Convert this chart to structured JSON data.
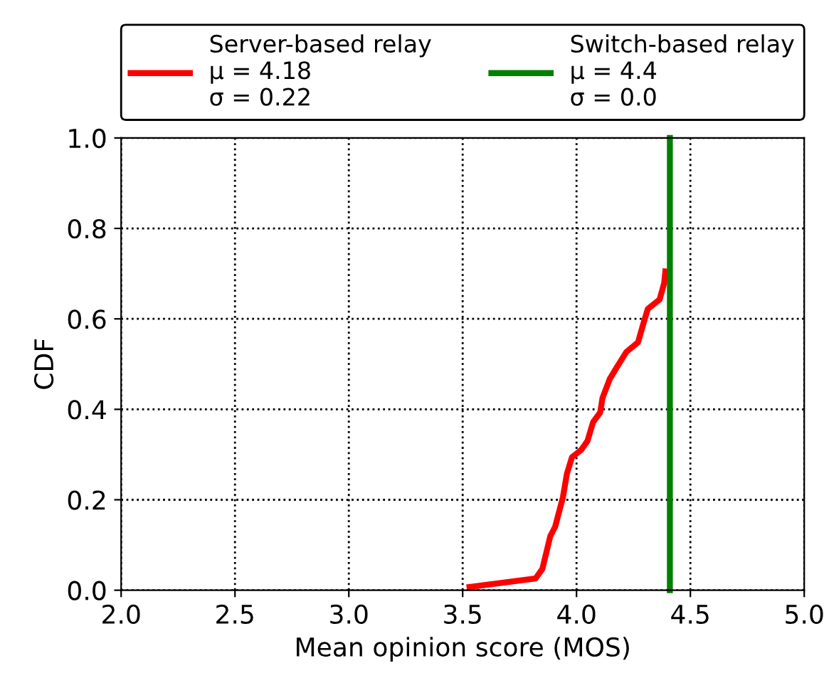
{
  "chart_data": {
    "type": "line",
    "xlabel": "Mean opinion score (MOS)",
    "ylabel": "CDF",
    "xlim": [
      2.0,
      5.0
    ],
    "ylim": [
      0.0,
      1.0
    ],
    "xticks": [
      {
        "value": 2.0,
        "label": "2.0"
      },
      {
        "value": 2.5,
        "label": "2.5"
      },
      {
        "value": 3.0,
        "label": "3.0"
      },
      {
        "value": 3.5,
        "label": "3.5"
      },
      {
        "value": 4.0,
        "label": "4.0"
      },
      {
        "value": 4.5,
        "label": "4.5"
      },
      {
        "value": 5.0,
        "label": "5.0"
      }
    ],
    "yticks": [
      {
        "value": 0.0,
        "label": "0.0"
      },
      {
        "value": 0.2,
        "label": "0.2"
      },
      {
        "value": 0.4,
        "label": "0.4"
      },
      {
        "value": 0.6,
        "label": "0.6"
      },
      {
        "value": 0.8,
        "label": "0.8"
      },
      {
        "value": 1.0,
        "label": "1.0"
      }
    ],
    "grid": true,
    "legend": "top",
    "marker": "none",
    "line_style": "solid",
    "series": [
      {
        "name": "Server-based relay\nμ = 4.18\nσ = 0.22",
        "color": "#ff0000",
        "x": [
          3.53,
          3.82,
          3.85,
          3.885,
          3.906,
          3.94,
          3.958,
          3.98,
          4.02,
          4.048,
          4.073,
          4.104,
          4.114,
          4.146,
          4.177,
          4.219,
          4.27,
          4.291,
          4.313,
          4.365,
          4.385,
          4.39
        ],
        "values": [
          0.007,
          0.026,
          0.047,
          0.12,
          0.14,
          0.205,
          0.258,
          0.294,
          0.31,
          0.33,
          0.372,
          0.393,
          0.425,
          0.467,
          0.493,
          0.527,
          0.548,
          0.585,
          0.622,
          0.643,
          0.679,
          0.705
        ]
      },
      {
        "name": "Switch-based relay\nμ = 4.4\nσ = 0.0",
        "color": "#008000",
        "x": [
          4.41,
          4.41
        ],
        "values": [
          0.0,
          1.0
        ]
      }
    ]
  }
}
